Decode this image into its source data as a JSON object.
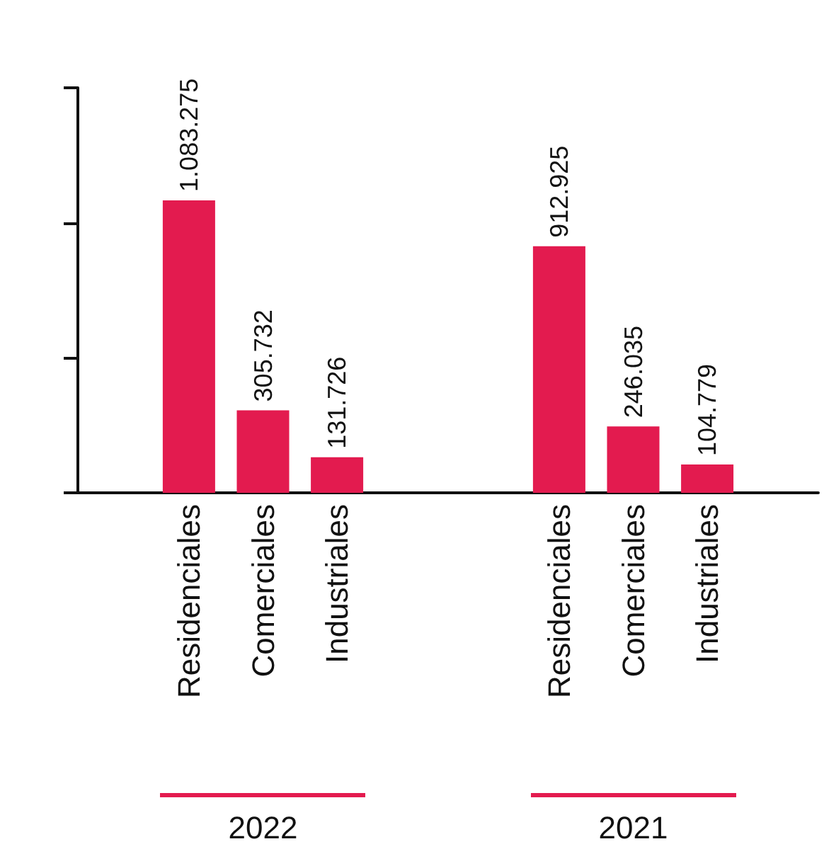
{
  "chart_data": {
    "type": "bar",
    "categories": [
      null,
      "Residenciales",
      "Comerciales",
      "Industriales",
      null,
      null,
      "Residenciales",
      "Comerciales",
      "Industriales",
      null
    ],
    "values": [
      null,
      1083275,
      305732,
      131726,
      null,
      null,
      912925,
      246035,
      104779,
      null
    ],
    "value_labels": [
      null,
      "1.083.275",
      "305.732",
      "131.726",
      null,
      null,
      "912.925",
      "246.035",
      "104.779",
      null
    ],
    "color": "#e31b4f",
    "ylim": [
      0,
      1500000
    ],
    "yticks": [
      {
        "value": 0,
        "label": null
      },
      {
        "value": 500000,
        "label": null
      },
      {
        "value": 1000000,
        "label": null
      },
      {
        "value": 1500000,
        "label": null
      }
    ],
    "tick_labels": "x",
    "annotations": [
      "2022",
      "2021"
    ]
  }
}
